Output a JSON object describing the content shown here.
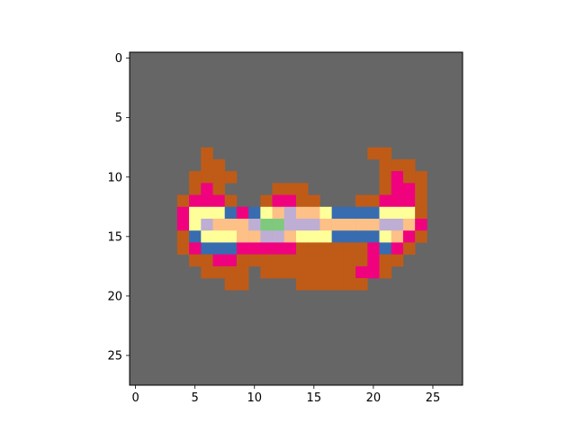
{
  "chart_data": {
    "type": "heatmap",
    "title": "",
    "xlabel": "",
    "ylabel": "",
    "xlim": [
      -0.5,
      27.5
    ],
    "ylim": [
      27.5,
      -0.5
    ],
    "x_ticks": [
      0,
      5,
      10,
      15,
      20,
      25
    ],
    "y_ticks": [
      0,
      5,
      10,
      15,
      20,
      25
    ],
    "grid": false,
    "background_color": "#666666",
    "palette": {
      "B": "#666666",
      "O": "#bf5b17",
      "M": "#f0027f",
      "Y": "#ffff99",
      "U": "#386cb0",
      "P": "#fdc086",
      "L": "#beaed4",
      "G": "#7fc97f"
    },
    "rows": [
      "BBBBBBBBBBBBBBBBBBBBBBBBBBBB",
      "BBBBBBBBBBBBBBBBBBBBBBBBBBBB",
      "BBBBBBBBBBBBBBBBBBBBBBBBBBBB",
      "BBBBBBBBBBBBBBBBBBBBBBBBBBBB",
      "BBBBBBBBBBBBBBBBBBBBBBBBBBBB",
      "BBBBBBBBBBBBBBBBBBBBBBBBBBBB",
      "BBBBBBBBBBBBBBBBBBBBBBBBBBBB",
      "BBBBBBBBBBBBBBBBBBBBBBBBBBBB",
      "BBBBBBOBBBBBBBBBBBBBOOBBBBBB",
      "BBBBBBOOBBBBBBBBBBBBBOOOBBBB",
      "BBBBBOOOOBBBBBBBBBBBBOMOOBBB",
      "BBBBBOMOBBBBOOOBBBBBBOMMOBBB",
      "BBBBOMMMOBBOMMOOBBBOOMMMOBBB",
      "BBBBMYYYUMUYPLPPYUUUUYYYOBBB",
      "BBBBMYLPPPLGGLLLPPPPPLLPMBBB",
      "BBBBOUYYYPPLLPYYYUUUUYPMOBBB",
      "BBBBOMUUUMMMMMOOOOOOMUMOBBBB",
      "BBBBBOOMMOOOOOOOOOOOMOOBBBBB",
      "BBBBBBOOOOBOOOOOOOOMMOBBBBBB",
      "BBBBBBBBOOBBBBOOOOOOBBBBBBBB",
      "BBBBBBBBBBBBBBBBBBBBBBBBBBBB",
      "BBBBBBBBBBBBBBBBBBBBBBBBBBBB",
      "BBBBBBBBBBBBBBBBBBBBBBBBBBBB",
      "BBBBBBBBBBBBBBBBBBBBBBBBBBBB",
      "BBBBBBBBBBBBBBBBBBBBBBBBBBBB",
      "BBBBBBBBBBBBBBBBBBBBBBBBBBBB",
      "BBBBBBBBBBBBBBBBBBBBBBBBBBBB",
      "BBBBBBBBBBBBBBBBBBBBBBBBBBBB"
    ]
  }
}
